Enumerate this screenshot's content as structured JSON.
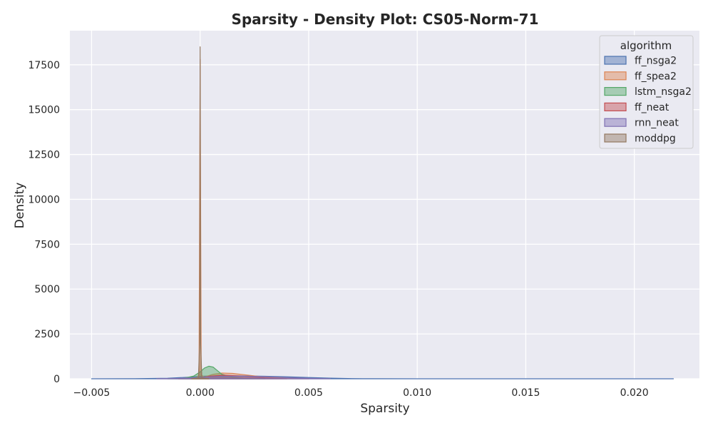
{
  "chart_data": {
    "type": "area",
    "title": "Sparsity - Density Plot: CS05-Norm-71",
    "xlabel": "Sparsity",
    "ylabel": "Density",
    "xlim": [
      -0.006,
      0.023
    ],
    "ylim": [
      0,
      19400
    ],
    "xticks": [
      -0.005,
      0.0,
      0.005,
      0.01,
      0.015,
      0.02
    ],
    "xtick_labels": [
      "−0.005",
      "0.000",
      "0.005",
      "0.010",
      "0.015",
      "0.020"
    ],
    "yticks": [
      0,
      2500,
      5000,
      7500,
      10000,
      12500,
      15000,
      17500
    ],
    "ytick_labels": [
      "0",
      "2500",
      "5000",
      "7500",
      "10000",
      "12500",
      "15000",
      "17500"
    ],
    "grid": true,
    "legend": {
      "title": "algorithm",
      "position": "top-right"
    },
    "series": [
      {
        "name": "ff_nsga2",
        "color": "#4c72b0",
        "x": [
          -0.005,
          -0.003,
          -0.0015,
          -0.0005,
          0.0,
          0.001,
          0.002,
          0.003,
          0.004,
          0.005,
          0.006,
          0.007,
          0.008,
          0.01,
          0.015,
          0.02,
          0.0218
        ],
        "y": [
          0,
          5,
          30,
          90,
          140,
          170,
          160,
          140,
          110,
          70,
          35,
          12,
          4,
          1,
          1,
          1,
          0
        ]
      },
      {
        "name": "ff_spea2",
        "color": "#dd8452",
        "x": [
          -0.001,
          -0.0002,
          -5e-05,
          0.0,
          5e-05,
          0.0002,
          0.0006,
          0.001,
          0.0015,
          0.002,
          0.003,
          0.004,
          0.005
        ],
        "y": [
          0,
          20,
          200,
          17800,
          200,
          100,
          250,
          320,
          300,
          230,
          90,
          20,
          0
        ]
      },
      {
        "name": "lstm_nsga2",
        "color": "#55a868",
        "x": [
          -0.0015,
          -0.0008,
          -0.0003,
          0.0,
          0.0002,
          0.0004,
          0.0006,
          0.0008,
          0.001,
          0.0015,
          0.002,
          0.003
        ],
        "y": [
          0,
          20,
          150,
          380,
          600,
          700,
          650,
          450,
          250,
          80,
          20,
          0
        ]
      },
      {
        "name": "ff_neat",
        "color": "#c44e52",
        "x": [
          -0.001,
          -0.0002,
          0.0,
          0.0005,
          0.001,
          0.002,
          0.003,
          0.004
        ],
        "y": [
          0,
          10,
          60,
          150,
          200,
          150,
          50,
          0
        ]
      },
      {
        "name": "rnn_neat",
        "color": "#8172b3",
        "x": [
          -0.002,
          -0.001,
          0.0,
          0.001,
          0.002,
          0.003,
          0.004,
          0.005,
          0.006
        ],
        "y": [
          0,
          20,
          80,
          140,
          150,
          120,
          70,
          25,
          0
        ]
      },
      {
        "name": "moddpg",
        "color": "#937860",
        "x": [
          -0.0004,
          -8e-05,
          -2e-05,
          0.0,
          2e-05,
          8e-05,
          0.0004
        ],
        "y": [
          0,
          50,
          2000,
          18500,
          2000,
          50,
          0
        ]
      }
    ]
  }
}
